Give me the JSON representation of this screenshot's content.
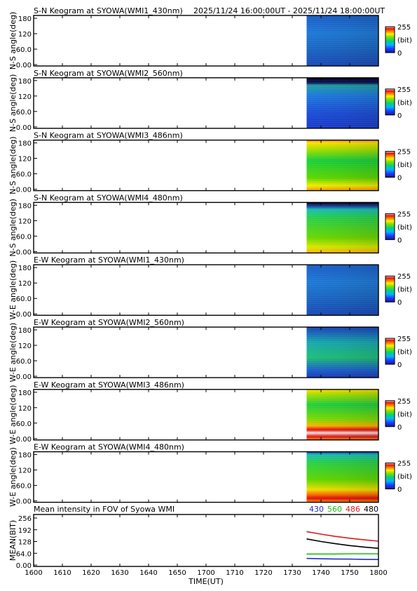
{
  "chart_data": {
    "type": "heatmap",
    "title": "2025/11/24 16:00:00UT - 2025/11/24 18:00:00UT",
    "colorbar": {
      "ticks": [
        "255",
        "(bit)",
        "0"
      ],
      "colormap": "rainbow",
      "range": [
        0,
        255
      ]
    },
    "x": {
      "label": "TIME(UT)",
      "ticks": [
        "1600",
        "1610",
        "1620",
        "1630",
        "1640",
        "1650",
        "1700",
        "1710",
        "1720",
        "1730",
        "1740",
        "1750",
        "1800"
      ],
      "data_start": "1735"
    },
    "keograms": [
      {
        "title": "S-N Keogram at SYOWA(WMI1_430nm)",
        "ylabel": "N-S angle(deg)",
        "yticks": [
          "180",
          "120",
          "60.0",
          "0.00"
        ],
        "profile": "blue"
      },
      {
        "title": "S-N Keogram at SYOWA(WMI2_560nm)",
        "ylabel": "N-S angle(deg)",
        "yticks": [
          "180",
          "120",
          "60.0",
          "0.00"
        ],
        "profile": "blue_top_black"
      },
      {
        "title": "S-N Keogram at SYOWA(WMI3_486nm)",
        "ylabel": "N-S angle(deg)",
        "yticks": [
          "180",
          "120",
          "60.0",
          "0.00"
        ],
        "profile": "green_edges_hot"
      },
      {
        "title": "S-N Keogram at SYOWA(WMI4_480nm)",
        "ylabel": "N-S angle(deg)",
        "yticks": [
          "180",
          "120",
          "60.0",
          "0.00"
        ],
        "profile": "green_top_black"
      },
      {
        "title": "E-W Keogram at SYOWA(WMI1_430nm)",
        "ylabel": "W-E angle(deg)",
        "yticks": [
          "180",
          "120",
          "60.0",
          "0.00"
        ],
        "profile": "blue"
      },
      {
        "title": "E-W Keogram at SYOWA(WMI2_560nm)",
        "ylabel": "W-E angle(deg)",
        "yticks": [
          "180",
          "120",
          "60.0",
          "0.00"
        ],
        "profile": "blue_green"
      },
      {
        "title": "E-W Keogram at SYOWA(WMI3_486nm)",
        "ylabel": "W-E angle(deg)",
        "yticks": [
          "180",
          "120",
          "60.0",
          "0.00"
        ],
        "profile": "green_bottom_hot"
      },
      {
        "title": "E-W Keogram at SYOWA(WMI4_480nm)",
        "ylabel": "W-E angle(deg)",
        "yticks": [
          "180",
          "120",
          "60.0",
          "0.00"
        ],
        "profile": "green_bottom_hot_topband"
      }
    ],
    "mean_plot": {
      "title": "Mean intensity in FOV of Syowa WMI",
      "type": "line",
      "ylabel": "MEAN(BIT)",
      "yticks": [
        "256",
        "192",
        "128",
        "64.0",
        "0.00"
      ],
      "ylim": [
        0,
        256
      ],
      "series": [
        {
          "name": "430",
          "color": "#1f2fc8",
          "x": [
            "1735",
            "1740",
            "1745",
            "1750",
            "1755",
            "1800"
          ],
          "values": [
            36,
            34,
            33,
            32,
            31,
            30
          ]
        },
        {
          "name": "560",
          "color": "#19c019",
          "x": [
            "1735",
            "1740",
            "1745",
            "1750",
            "1755",
            "1800"
          ],
          "values": [
            60,
            60,
            60,
            61,
            61,
            61
          ]
        },
        {
          "name": "486",
          "color": "#d81e1e",
          "x": [
            "1735",
            "1740",
            "1745",
            "1750",
            "1755",
            "1800"
          ],
          "values": [
            182,
            168,
            156,
            146,
            137,
            130
          ]
        },
        {
          "name": "480",
          "color": "#000000",
          "x": [
            "1735",
            "1740",
            "1745",
            "1750",
            "1755",
            "1800"
          ],
          "values": [
            142,
            128,
            116,
            106,
            98,
            91
          ]
        }
      ]
    }
  }
}
